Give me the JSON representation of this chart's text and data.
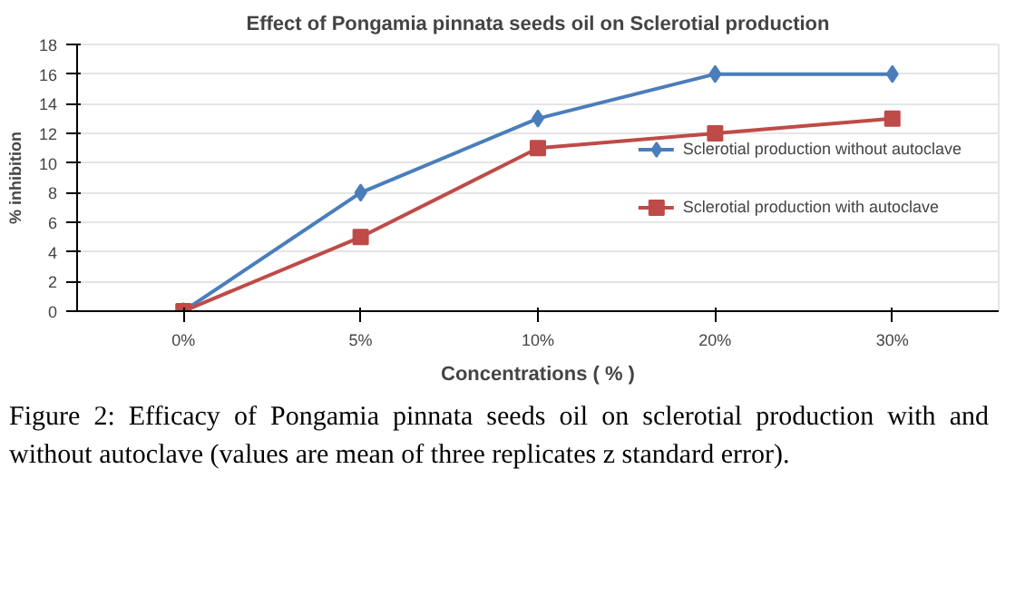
{
  "chart_data": {
    "type": "line",
    "title": "Effect of Pongamia pinnata seeds oil on Sclerotial production",
    "xlabel": "Concentrations ( % )",
    "ylabel": "% inhibition",
    "categories": [
      "0%",
      "5%",
      "10%",
      "20%",
      "30%"
    ],
    "series": [
      {
        "name": "Sclerotial production without autoclave",
        "color": "#4a7ebb",
        "marker": "diamond",
        "values": [
          0,
          8,
          13,
          16,
          16
        ]
      },
      {
        "name": "Sclerotial production with autoclave",
        "color": "#be4b48",
        "marker": "square",
        "values": [
          0,
          5,
          11,
          12,
          13
        ]
      }
    ],
    "ylim": [
      0,
      18
    ],
    "yticks": [
      0,
      2,
      4,
      6,
      8,
      10,
      12,
      14,
      16,
      18
    ],
    "grid": "y",
    "legend": "right",
    "annotations": [
      "Figure 2: Efficacy of Pongamia pinnata seeds oil on sclerotial production with and without autoclave (values are mean of three replicates z standard error)."
    ]
  }
}
